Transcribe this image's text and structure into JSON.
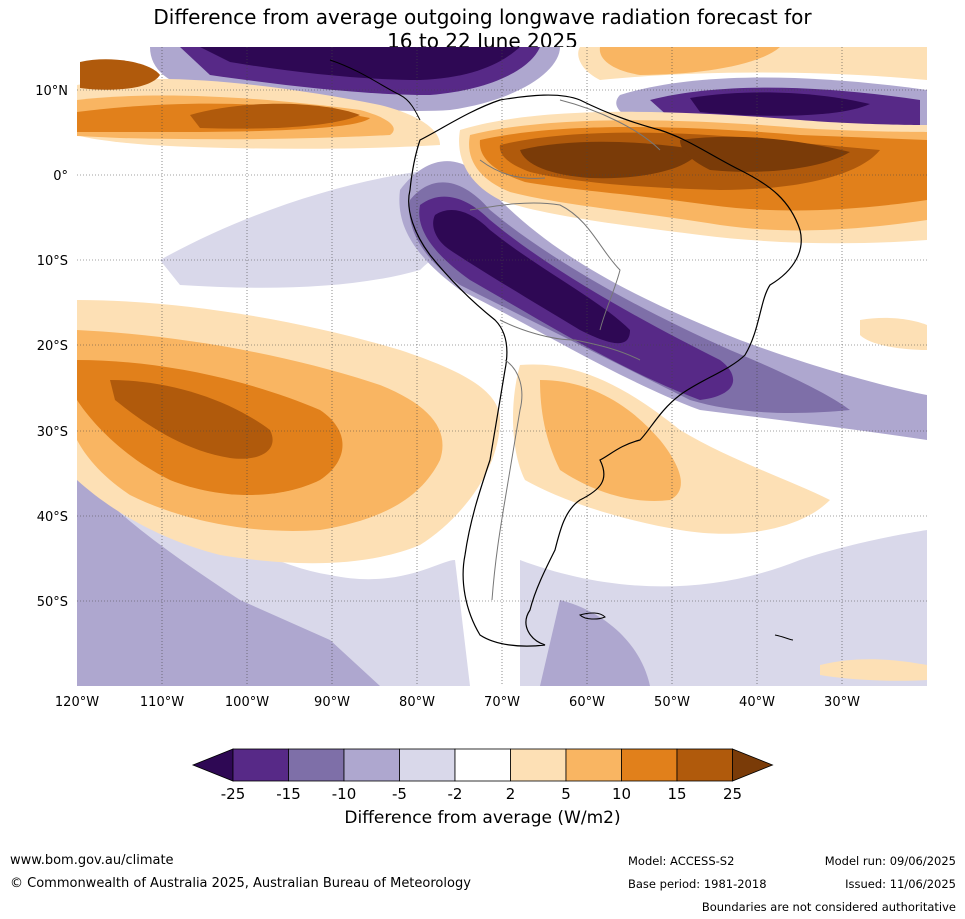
{
  "title": {
    "line1": "Difference from average outgoing longwave radiation forecast for",
    "line2": "16 to 22 June 2025"
  },
  "map": {
    "lat_labels": [
      "10°N",
      "0°",
      "10°S",
      "20°S",
      "30°S",
      "40°S",
      "50°S"
    ],
    "lon_labels": [
      "120°W",
      "110°W",
      "100°W",
      "90°W",
      "80°W",
      "70°W",
      "60°W",
      "50°W",
      "40°W",
      "30°W"
    ],
    "lon_range": [
      -120,
      -20
    ],
    "lat_range": [
      -60,
      15
    ],
    "gridlines": true
  },
  "colorbar": {
    "ticks": [
      "-25",
      "-15",
      "-10",
      "-5",
      "-2",
      "2",
      "5",
      "10",
      "15",
      "25"
    ],
    "colors": [
      "#2e0854",
      "#572987",
      "#7e6fa8",
      "#aea7cf",
      "#d9d8ea",
      "#ffffff",
      "#fde0b5",
      "#f9b562",
      "#e1801b",
      "#b05a0c",
      "#7a3b08"
    ],
    "title": "Difference from average (W/m2)"
  },
  "footer": {
    "url": "www.bom.gov.au/climate",
    "copyright": "© Commonwealth of Australia 2025, Australian Bureau of Meteorology",
    "model": "Model: ACCESS-S2",
    "base_period": "Base period: 1981-2018",
    "model_run": "Model run: 09/06/2025",
    "issued": "Issued: 11/06/2025",
    "disclaimer": "Boundaries are not considered authoritative"
  }
}
